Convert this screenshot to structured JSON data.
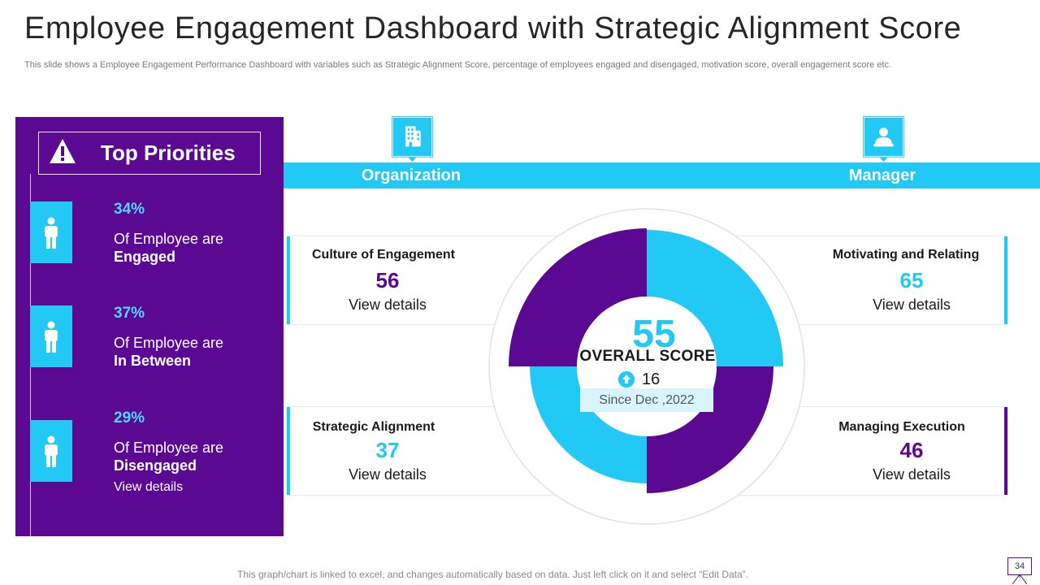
{
  "header": {
    "title": "Employee Engagement Dashboard with Strategic Alignment Score",
    "subtitle": "This slide shows a Employee Engagement Performance Dashboard with variables such as Strategic Alignment Score, percentage of employees engaged and disengaged, motivation score, overall engagement score etc."
  },
  "priorities": {
    "title": "Top Priorities",
    "items": [
      {
        "percent": "34%",
        "line1": "Of Employee are",
        "line2": "Engaged"
      },
      {
        "percent": "37%",
        "line1": "Of Employee are",
        "line2": "In Between"
      },
      {
        "percent": "29%",
        "line1": "Of Employee are",
        "line2": "Disengaged"
      }
    ],
    "link": "View details"
  },
  "tabs": {
    "organization": "Organization",
    "manager": "Manager"
  },
  "cards": {
    "culture": {
      "title": "Culture of Engagement",
      "value": "56",
      "link": "View details"
    },
    "strategic": {
      "title": "Strategic Alignment",
      "value": "37",
      "link": "View details"
    },
    "motivating": {
      "title": "Motivating and Relating",
      "value": "65",
      "link": "View details"
    },
    "managing": {
      "title": "Managing Execution",
      "value": "46",
      "link": "View details"
    }
  },
  "overall": {
    "score": "55",
    "label": "OVERALL SCORE",
    "delta": "16",
    "since": "Since Dec ,2022"
  },
  "footer": {
    "note": "This graph/chart is linked to excel, and changes automatically based on data. Just left click on it and select “Edit Data”.",
    "page": "34"
  },
  "colors": {
    "purple": "#5b0993",
    "cyan": "#22c9f5",
    "light_cyan": "#4fd8ff"
  }
}
